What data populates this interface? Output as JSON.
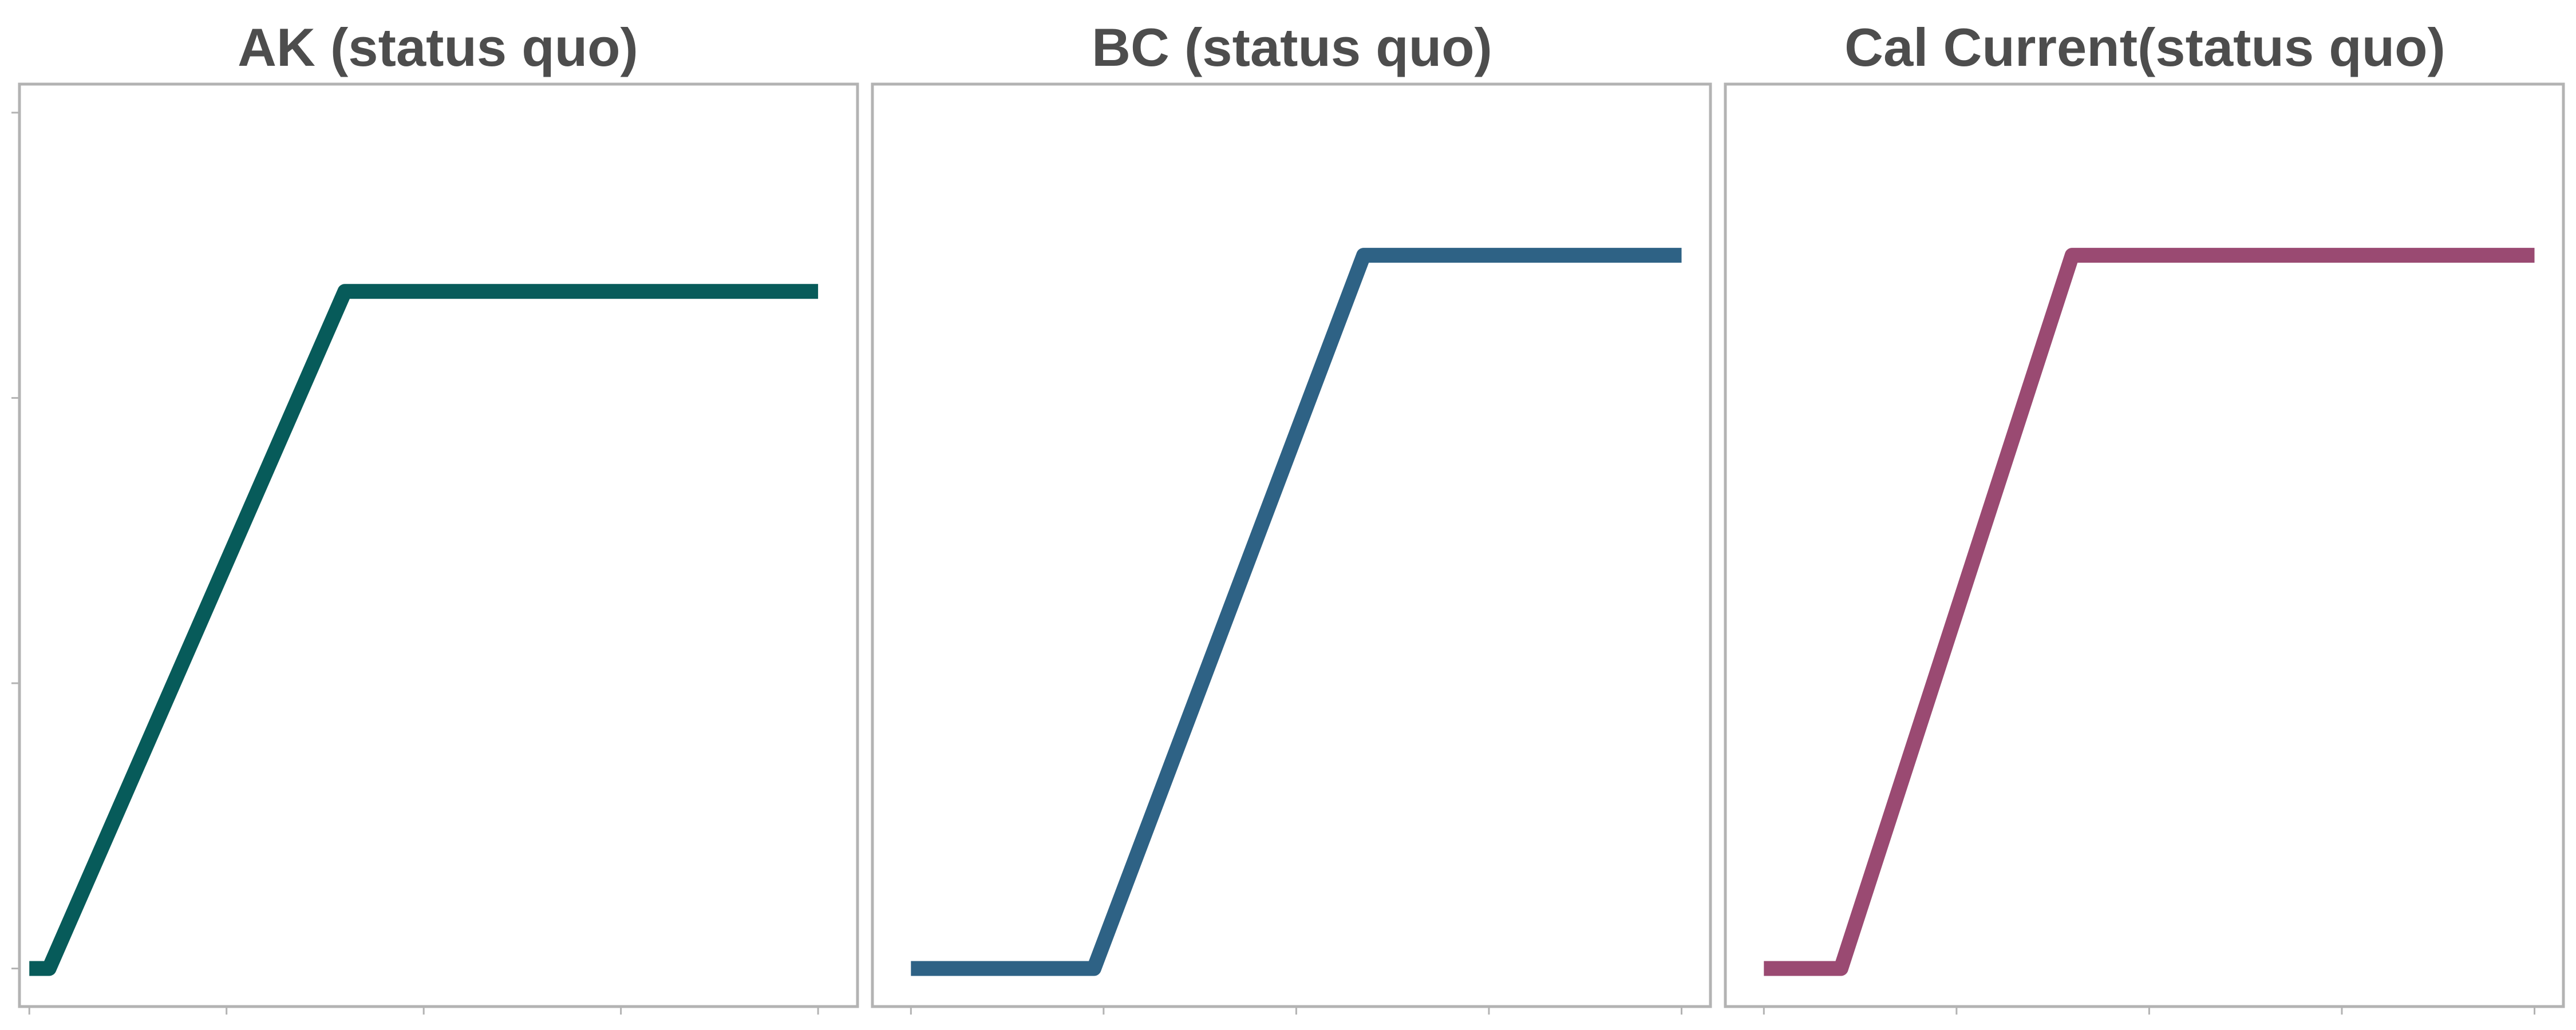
{
  "chart_data": [
    {
      "type": "line",
      "title": "AK (status quo)",
      "color": "#075b5a",
      "x": [
        0,
        0.2,
        3.2,
        8.0
      ],
      "y": [
        0,
        0,
        3.56,
        3.56
      ],
      "xlim": [
        -0.1,
        8.4
      ],
      "ylim": [
        -0.2,
        4.65
      ],
      "xticks": [
        0,
        2,
        4,
        6,
        8
      ],
      "yticks": [
        0,
        1.5,
        3,
        4.5
      ],
      "xlabel": "",
      "ylabel": "",
      "grid": false,
      "legend": "none"
    },
    {
      "type": "line",
      "title": "BC (status quo)",
      "color": "#2e6285",
      "x": [
        0,
        1.9,
        4.7,
        8.0
      ],
      "y": [
        0,
        0,
        3.75,
        3.75
      ],
      "xlim": [
        -0.4,
        8.3
      ],
      "ylim": [
        -0.2,
        4.65
      ],
      "xticks": [
        0,
        2,
        4,
        6,
        8
      ],
      "yticks": [
        0,
        1.5,
        3,
        4.5
      ],
      "xlabel": "",
      "ylabel": "",
      "grid": false,
      "legend": "none"
    },
    {
      "type": "line",
      "title": "Cal Current(status quo)",
      "color": "#9a4a72",
      "x": [
        0,
        0.8,
        3.2,
        8.0
      ],
      "y": [
        0,
        0,
        3.75,
        3.75
      ],
      "xlim": [
        -0.4,
        8.3
      ],
      "ylim": [
        -0.2,
        4.65
      ],
      "xticks": [
        0,
        2,
        4,
        6,
        8
      ],
      "yticks": [
        0,
        1.5,
        3,
        4.5
      ],
      "xlabel": "",
      "ylabel": "",
      "grid": false,
      "legend": "none"
    }
  ]
}
